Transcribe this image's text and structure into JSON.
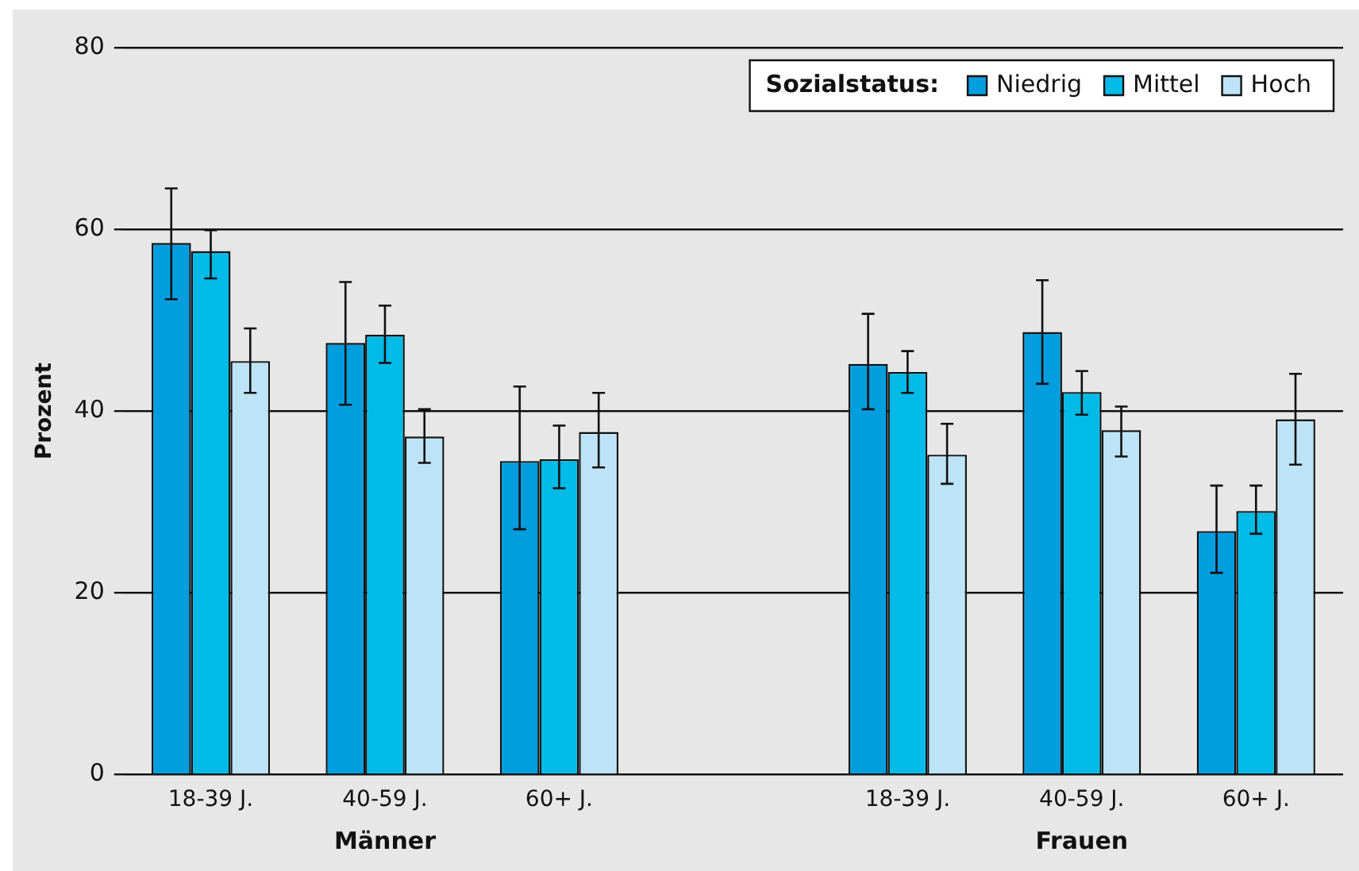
{
  "chart_data": {
    "type": "bar",
    "ylabel": "Prozent",
    "legend_title": "Sozialstatus:",
    "legend": "top right",
    "grid": "y",
    "categories": [
      "18-39 J.",
      "40-59 J.",
      "60+ J.",
      null,
      "18-39 J.",
      "40-59 J.",
      "60+ J."
    ],
    "annotations": [
      "Männer",
      "Frauen"
    ],
    "ylim": [
      0,
      80
    ],
    "yticks": [
      0,
      20,
      40,
      60,
      80
    ],
    "series": [
      {
        "name": "Niedrig",
        "color": "#009ddf",
        "values": [
          58.5,
          47.5,
          34.5,
          null,
          45.2,
          48.7,
          26.8
        ],
        "errors": [
          [
            52.3,
            64.5
          ],
          [
            40.7,
            54.2
          ],
          [
            27,
            42.7
          ],
          null,
          [
            40.2,
            50.7
          ],
          [
            43,
            54.4
          ],
          [
            22.2,
            31.8
          ]
        ]
      },
      {
        "name": "Mittel",
        "color": "#00bbe8",
        "values": [
          57.6,
          48.4,
          34.7,
          null,
          44.3,
          42.1,
          29
        ],
        "errors": [
          [
            54.6,
            59.9
          ],
          [
            45.3,
            51.6
          ],
          [
            31.5,
            38.4
          ],
          null,
          [
            42,
            46.6
          ],
          [
            39.6,
            44.4
          ],
          [
            26.5,
            31.8
          ]
        ]
      },
      {
        "name": "Hoch",
        "color": "#bde4f6",
        "values": [
          45.5,
          37.2,
          37.7,
          null,
          35.2,
          37.9,
          39.1
        ],
        "errors": [
          [
            42,
            49.1
          ],
          [
            34.3,
            40.2
          ],
          [
            33.8,
            42
          ],
          null,
          [
            32,
            38.6
          ],
          [
            35,
            40.5
          ],
          [
            34.1,
            44.1
          ]
        ]
      }
    ]
  }
}
